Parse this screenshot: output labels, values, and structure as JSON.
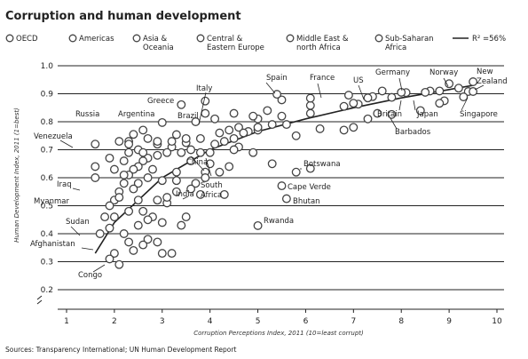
{
  "chart_data": {
    "type": "scatter",
    "title": "Corruption and human development",
    "xlabel": "Corruption Perceptions Index, 2011 (10=least corrupt)",
    "ylabel": "Human Development Index, 2011 (1=best)",
    "xlim": [
      1,
      10
    ],
    "ylim": [
      0.2,
      1.0
    ],
    "x_ticks": [
      "1",
      "2",
      "3",
      "4",
      "5",
      "6",
      "7",
      "8",
      "9",
      "10"
    ],
    "y_ticks": [
      "0.2",
      "0.3",
      "0.4",
      "0.5",
      "0.6",
      "0.7",
      "0.8",
      "0.9",
      "1.0"
    ],
    "grid": "horizontal",
    "legend": {
      "placement": "top",
      "entries": [
        {
          "label": "OECD"
        },
        {
          "label": "Americas"
        },
        {
          "label": "Asia & Oceania"
        },
        {
          "label": "Central & Eastern Europe"
        },
        {
          "label": "Middle East & north Africa"
        },
        {
          "label": "Sub-Saharan Africa"
        }
      ],
      "trend_label": "R² =56%"
    },
    "source": "Sources: Transparency International; UN Human Development Report",
    "points": [
      [
        9.5,
        0.943
      ],
      [
        9.4,
        0.908
      ],
      [
        9.3,
        0.889
      ],
      [
        9.0,
        0.936
      ],
      [
        8.9,
        0.875
      ],
      [
        8.8,
        0.91
      ],
      [
        8.6,
        0.91
      ],
      [
        8.5,
        0.905
      ],
      [
        8.1,
        0.904
      ],
      [
        8.0,
        0.905
      ],
      [
        7.8,
        0.887
      ],
      [
        7.6,
        0.91
      ],
      [
        7.4,
        0.89
      ],
      [
        7.3,
        0.885
      ],
      [
        7.1,
        0.863
      ],
      [
        7.0,
        0.866
      ],
      [
        6.9,
        0.895
      ],
      [
        6.8,
        0.855
      ],
      [
        6.1,
        0.858
      ],
      [
        6.1,
        0.884
      ],
      [
        5.5,
        0.878
      ],
      [
        5.4,
        0.898
      ],
      [
        5.2,
        0.84
      ],
      [
        5.0,
        0.81
      ],
      [
        4.9,
        0.82
      ],
      [
        4.6,
        0.78
      ],
      [
        3.9,
        0.874
      ],
      [
        3.4,
        0.861
      ],
      [
        9.5,
        0.908
      ],
      [
        9.2,
        0.92
      ],
      [
        8.8,
        0.866
      ],
      [
        8.4,
        0.84
      ],
      [
        7.8,
        0.826
      ],
      [
        7.5,
        0.83
      ],
      [
        7.3,
        0.81
      ],
      [
        7.0,
        0.78
      ],
      [
        6.8,
        0.77
      ],
      [
        6.3,
        0.775
      ],
      [
        6.1,
        0.83
      ],
      [
        5.8,
        0.75
      ],
      [
        5.6,
        0.79
      ],
      [
        5.5,
        0.82
      ],
      [
        5.0,
        0.77
      ],
      [
        4.8,
        0.765
      ],
      [
        4.5,
        0.83
      ],
      [
        4.1,
        0.81
      ],
      [
        3.9,
        0.83
      ],
      [
        3.7,
        0.8
      ],
      [
        3.5,
        0.725
      ],
      [
        3.3,
        0.754
      ],
      [
        3.0,
        0.797
      ],
      [
        2.9,
        0.72
      ],
      [
        2.6,
        0.77
      ],
      [
        2.5,
        0.7
      ],
      [
        2.3,
        0.73
      ],
      [
        2.2,
        0.66
      ],
      [
        1.6,
        0.72
      ],
      [
        5.0,
        0.78
      ],
      [
        5.3,
        0.79
      ],
      [
        4.7,
        0.76
      ],
      [
        4.5,
        0.74
      ],
      [
        4.3,
        0.73
      ],
      [
        4.1,
        0.72
      ],
      [
        4.0,
        0.69
      ],
      [
        3.8,
        0.69
      ],
      [
        3.6,
        0.7
      ],
      [
        3.4,
        0.69
      ],
      [
        3.2,
        0.71
      ],
      [
        3.1,
        0.69
      ],
      [
        2.9,
        0.68
      ],
      [
        2.7,
        0.67
      ],
      [
        2.6,
        0.66
      ],
      [
        2.5,
        0.64
      ],
      [
        2.4,
        0.63
      ],
      [
        2.3,
        0.61
      ],
      [
        2.2,
        0.58
      ],
      [
        2.1,
        0.55
      ],
      [
        2.0,
        0.52
      ],
      [
        1.9,
        0.5
      ],
      [
        1.8,
        0.46
      ],
      [
        1.7,
        0.4
      ],
      [
        2.4,
        0.755
      ],
      [
        2.3,
        0.72
      ],
      [
        2.7,
        0.74
      ],
      [
        2.9,
        0.73
      ],
      [
        3.2,
        0.73
      ],
      [
        3.5,
        0.74
      ],
      [
        3.8,
        0.74
      ],
      [
        4.2,
        0.76
      ],
      [
        4.4,
        0.77
      ],
      [
        4.6,
        0.71
      ],
      [
        2.1,
        0.73
      ],
      [
        2.3,
        0.69
      ],
      [
        2.6,
        0.69
      ],
      [
        2.8,
        0.63
      ],
      [
        2.2,
        0.61
      ],
      [
        2.5,
        0.58
      ],
      [
        2.0,
        0.63
      ],
      [
        1.9,
        0.67
      ],
      [
        1.6,
        0.64
      ],
      [
        1.6,
        0.6
      ],
      [
        3.0,
        0.59
      ],
      [
        2.7,
        0.6
      ],
      [
        2.4,
        0.56
      ],
      [
        2.1,
        0.53
      ],
      [
        3.3,
        0.55
      ],
      [
        3.1,
        0.51
      ],
      [
        2.6,
        0.48
      ],
      [
        2.3,
        0.48
      ],
      [
        2.0,
        0.46
      ],
      [
        1.9,
        0.42
      ],
      [
        2.5,
        0.52
      ],
      [
        2.8,
        0.46
      ],
      [
        3.0,
        0.44
      ],
      [
        2.5,
        0.43
      ],
      [
        2.2,
        0.4
      ],
      [
        2.7,
        0.38
      ],
      [
        2.3,
        0.37
      ],
      [
        2.0,
        0.33
      ],
      [
        1.9,
        0.31
      ],
      [
        2.1,
        0.29
      ],
      [
        2.4,
        0.34
      ],
      [
        2.6,
        0.36
      ],
      [
        2.9,
        0.37
      ],
      [
        3.5,
        0.46
      ],
      [
        3.4,
        0.43
      ],
      [
        3.0,
        0.33
      ],
      [
        3.2,
        0.33
      ],
      [
        2.7,
        0.45
      ],
      [
        3.9,
        0.62
      ],
      [
        3.7,
        0.58
      ],
      [
        4.0,
        0.65
      ],
      [
        4.2,
        0.62
      ],
      [
        4.4,
        0.64
      ],
      [
        3.3,
        0.62
      ],
      [
        3.6,
        0.56
      ],
      [
        3.8,
        0.54
      ],
      [
        2.9,
        0.52
      ],
      [
        3.1,
        0.53
      ],
      [
        4.3,
        0.54
      ],
      [
        3.6,
        0.66
      ],
      [
        6.1,
        0.633
      ],
      [
        5.5,
        0.571
      ],
      [
        5.6,
        0.525
      ],
      [
        5.0,
        0.429
      ],
      [
        5.8,
        0.62
      ],
      [
        5.3,
        0.65
      ],
      [
        4.9,
        0.69
      ],
      [
        4.5,
        0.7
      ],
      [
        3.9,
        0.6
      ],
      [
        3.3,
        0.59
      ]
    ],
    "trend": [
      [
        1.6,
        0.33
      ],
      [
        2,
        0.44
      ],
      [
        3,
        0.6
      ],
      [
        4,
        0.7
      ],
      [
        5,
        0.765
      ],
      [
        6,
        0.81
      ],
      [
        7,
        0.85
      ],
      [
        8,
        0.885
      ],
      [
        9,
        0.915
      ],
      [
        9.5,
        0.93
      ]
    ],
    "annotations": [
      {
        "text": "Spain",
        "x": 5.9,
        "y": 0.89
      },
      {
        "text": "France",
        "x": 7.0,
        "y": 0.89
      },
      {
        "text": "US",
        "x": 7.1,
        "y": 0.91
      },
      {
        "text": "Germany",
        "x": 8.0,
        "y": 0.905
      },
      {
        "text": "Norway",
        "x": 9.0,
        "y": 0.943
      },
      {
        "text": "New Zealand",
        "x": 9.5,
        "y": 0.908
      },
      {
        "text": "Italy",
        "x": 3.9,
        "y": 0.874
      },
      {
        "text": "Greece",
        "x": 3.4,
        "y": 0.861
      },
      {
        "text": "Russia",
        "x": 2.4,
        "y": 0.755
      },
      {
        "text": "Argentina",
        "x": 3.0,
        "y": 0.797
      },
      {
        "text": "Brazil",
        "x": 3.8,
        "y": 0.72
      },
      {
        "text": "Britain",
        "x": 7.8,
        "y": 0.863
      },
      {
        "text": "Japan",
        "x": 8.0,
        "y": 0.9
      },
      {
        "text": "Singapore",
        "x": 9.2,
        "y": 0.866
      },
      {
        "text": "Barbados",
        "x": 7.8,
        "y": 0.79
      },
      {
        "text": "Venezuela",
        "x": 1.9,
        "y": 0.735
      },
      {
        "text": "China",
        "x": 3.6,
        "y": 0.687
      },
      {
        "text": "South Africa",
        "x": 4.1,
        "y": 0.619
      },
      {
        "text": "Botswana",
        "x": 6.1,
        "y": 0.633
      },
      {
        "text": "Iraq",
        "x": 1.8,
        "y": 0.573
      },
      {
        "text": "India",
        "x": 3.1,
        "y": 0.547
      },
      {
        "text": "Cape Verde",
        "x": 5.5,
        "y": 0.568
      },
      {
        "text": "Bhutan",
        "x": 5.7,
        "y": 0.522
      },
      {
        "text": "Myanmar",
        "x": 1.5,
        "y": 0.483
      },
      {
        "text": "Sudan",
        "x": 1.6,
        "y": 0.408
      },
      {
        "text": "Rwanda",
        "x": 5.0,
        "y": 0.429
      },
      {
        "text": "Afghanistan",
        "x": 1.5,
        "y": 0.398
      },
      {
        "text": "Congo",
        "x": 2.0,
        "y": 0.286
      }
    ]
  }
}
